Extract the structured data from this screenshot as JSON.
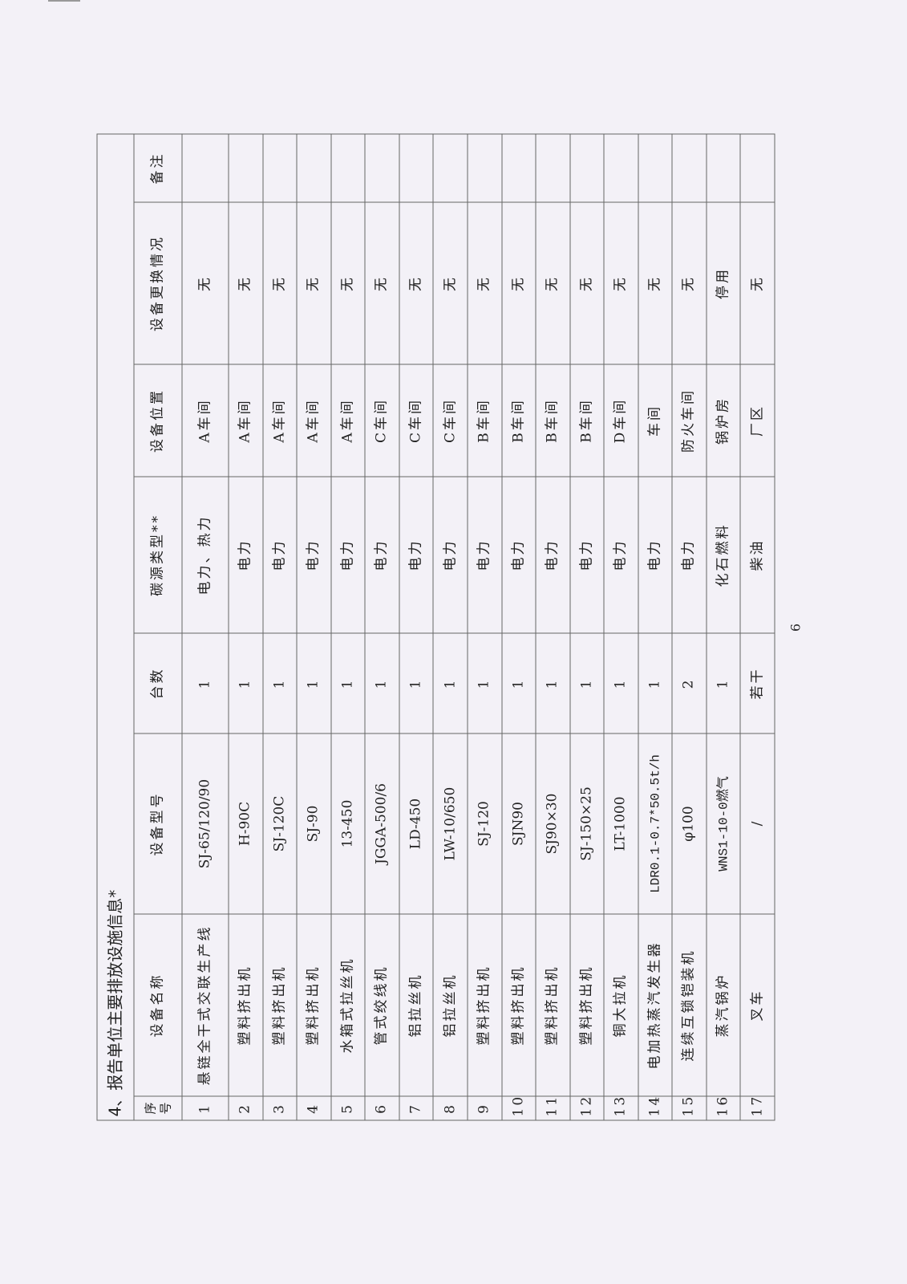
{
  "title": "4、报告单位主要排放设施信息*",
  "headers": [
    "序号",
    "设备名称",
    "设备型号",
    "台数",
    "碳源类型**",
    "设备位置",
    "设备更换情况",
    "备注"
  ],
  "rows": [
    [
      "1",
      "悬链全干式交联生产线",
      "SJ-65/120/90",
      "1",
      "电力、热力",
      "A车间",
      "无",
      ""
    ],
    [
      "2",
      "塑料挤出机",
      "H-90C",
      "1",
      "电力",
      "A车间",
      "无",
      ""
    ],
    [
      "3",
      "塑料挤出机",
      "SJ-120C",
      "1",
      "电力",
      "A车间",
      "无",
      ""
    ],
    [
      "4",
      "塑料挤出机",
      "SJ-90",
      "1",
      "电力",
      "A车间",
      "无",
      ""
    ],
    [
      "5",
      "水箱式拉丝机",
      "13-450",
      "1",
      "电力",
      "A车间",
      "无",
      ""
    ],
    [
      "6",
      "管式绞线机",
      "JGGA-500/6",
      "1",
      "电力",
      "C车间",
      "无",
      ""
    ],
    [
      "7",
      "铝拉丝机",
      "LD-450",
      "1",
      "电力",
      "C车间",
      "无",
      ""
    ],
    [
      "8",
      "铝拉丝机",
      "LW-10/650",
      "1",
      "电力",
      "C车间",
      "无",
      ""
    ],
    [
      "9",
      "塑料挤出机",
      "SJ-120",
      "1",
      "电力",
      "B车间",
      "无",
      ""
    ],
    [
      "10",
      "塑料挤出机",
      "SJN90",
      "1",
      "电力",
      "B车间",
      "无",
      ""
    ],
    [
      "11",
      "塑料挤出机",
      "SJ90×30",
      "1",
      "电力",
      "B车间",
      "无",
      ""
    ],
    [
      "12",
      "塑料挤出机",
      "SJ-150×25",
      "1",
      "电力",
      "B车间",
      "无",
      ""
    ],
    [
      "13",
      "铜大拉机",
      "LT-1000",
      "1",
      "电力",
      "D车间",
      "无",
      ""
    ],
    [
      "14",
      "电加热蒸汽发生器",
      "LDR0.1-0.7*50.5t/h",
      "1",
      "电力",
      "车间",
      "无",
      ""
    ],
    [
      "15",
      "连续互锁铠装机",
      "φ100",
      "2",
      "电力",
      "防火车间",
      "无",
      ""
    ],
    [
      "16",
      "蒸汽锅炉",
      "WNS1-10-0燃气",
      "1",
      "化石燃料",
      "锅炉房",
      "停用",
      ""
    ],
    [
      "17",
      "叉车",
      "/",
      "若干",
      "柴油",
      "厂区",
      "无",
      ""
    ]
  ],
  "page_number": "6"
}
